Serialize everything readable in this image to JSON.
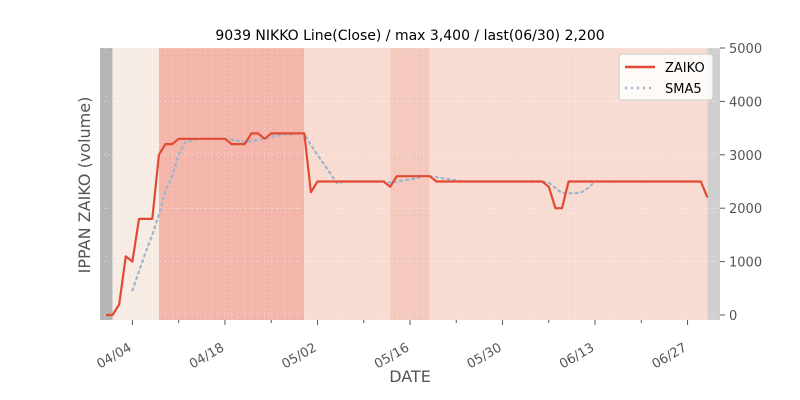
{
  "chart_data": {
    "type": "line",
    "title": "9039 NIKKO Line(Close) / max 3,400 / last(06/30) 2,200",
    "xlabel": "DATE",
    "ylabel": "IPPAN ZAIKO (volume)",
    "ylim": [
      0,
      5000
    ],
    "yticks": [
      0,
      1000,
      2000,
      3000,
      4000,
      5000
    ],
    "ytick_labels": [
      "0",
      "1000",
      "2000",
      "3000",
      "4000",
      "5000"
    ],
    "xlim": [
      "03/31",
      "07/01"
    ],
    "xticks": [
      "04/04",
      "04/18",
      "05/02",
      "05/16",
      "05/30",
      "06/13",
      "06/27"
    ],
    "grid": true,
    "legend_position": "top-right",
    "colors": {
      "zaiko": "#e24a33",
      "sma5": "#9db4cd",
      "band_dark": "#f4b5aa",
      "band_medium": "#f5c8bd",
      "band_light": "#f8dcd2",
      "band_pale": "#f6ece3",
      "edge": "#cfcfcf",
      "edge_dark": "#b5b5b5"
    },
    "series": [
      {
        "name": "ZAIKO",
        "points": [
          [
            "03/31",
            0
          ],
          [
            "04/01",
            0
          ],
          [
            "04/02",
            200
          ],
          [
            "04/03",
            1100
          ],
          [
            "04/04",
            1000
          ],
          [
            "04/05",
            1800
          ],
          [
            "04/06",
            1800
          ],
          [
            "04/07",
            1800
          ],
          [
            "04/08",
            3000
          ],
          [
            "04/09",
            3200
          ],
          [
            "04/10",
            3200
          ],
          [
            "04/11",
            3300
          ],
          [
            "04/12",
            3300
          ],
          [
            "04/13",
            3300
          ],
          [
            "04/14",
            3300
          ],
          [
            "04/15",
            3300
          ],
          [
            "04/16",
            3300
          ],
          [
            "04/17",
            3300
          ],
          [
            "04/18",
            3300
          ],
          [
            "04/19",
            3200
          ],
          [
            "04/20",
            3200
          ],
          [
            "04/21",
            3200
          ],
          [
            "04/22",
            3400
          ],
          [
            "04/23",
            3400
          ],
          [
            "04/24",
            3300
          ],
          [
            "04/25",
            3400
          ],
          [
            "04/26",
            3400
          ],
          [
            "04/27",
            3400
          ],
          [
            "04/28",
            3400
          ],
          [
            "04/29",
            3400
          ],
          [
            "04/30",
            3400
          ],
          [
            "05/01",
            2300
          ],
          [
            "05/02",
            2500
          ],
          [
            "05/03",
            2500
          ],
          [
            "05/04",
            2500
          ],
          [
            "05/05",
            2500
          ],
          [
            "05/06",
            2500
          ],
          [
            "05/07",
            2500
          ],
          [
            "05/08",
            2500
          ],
          [
            "05/09",
            2500
          ],
          [
            "05/10",
            2500
          ],
          [
            "05/11",
            2500
          ],
          [
            "05/12",
            2500
          ],
          [
            "05/13",
            2400
          ],
          [
            "05/14",
            2600
          ],
          [
            "05/15",
            2600
          ],
          [
            "05/16",
            2600
          ],
          [
            "05/17",
            2600
          ],
          [
            "05/18",
            2600
          ],
          [
            "05/19",
            2600
          ],
          [
            "05/20",
            2500
          ],
          [
            "05/21",
            2500
          ],
          [
            "05/22",
            2500
          ],
          [
            "05/23",
            2500
          ],
          [
            "05/24",
            2500
          ],
          [
            "05/25",
            2500
          ],
          [
            "05/26",
            2500
          ],
          [
            "05/27",
            2500
          ],
          [
            "05/28",
            2500
          ],
          [
            "05/29",
            2500
          ],
          [
            "05/30",
            2500
          ],
          [
            "05/31",
            2500
          ],
          [
            "06/01",
            2500
          ],
          [
            "06/02",
            2500
          ],
          [
            "06/03",
            2500
          ],
          [
            "06/04",
            2500
          ],
          [
            "06/05",
            2500
          ],
          [
            "06/06",
            2400
          ],
          [
            "06/07",
            2000
          ],
          [
            "06/08",
            2000
          ],
          [
            "06/09",
            2500
          ],
          [
            "06/10",
            2500
          ],
          [
            "06/11",
            2500
          ],
          [
            "06/12",
            2500
          ],
          [
            "06/13",
            2500
          ],
          [
            "06/14",
            2500
          ],
          [
            "06/15",
            2500
          ],
          [
            "06/16",
            2500
          ],
          [
            "06/17",
            2500
          ],
          [
            "06/18",
            2500
          ],
          [
            "06/19",
            2500
          ],
          [
            "06/20",
            2500
          ],
          [
            "06/21",
            2500
          ],
          [
            "06/22",
            2500
          ],
          [
            "06/23",
            2500
          ],
          [
            "06/24",
            2500
          ],
          [
            "06/25",
            2500
          ],
          [
            "06/26",
            2500
          ],
          [
            "06/27",
            2500
          ],
          [
            "06/28",
            2500
          ],
          [
            "06/29",
            2500
          ],
          [
            "06/30",
            2200
          ]
        ]
      },
      {
        "name": "SMA5",
        "segments": [
          [
            [
              "04/04",
              460
            ],
            [
              "04/05",
              820
            ],
            [
              "04/06",
              1180
            ],
            [
              "04/07",
              1500
            ],
            [
              "04/08",
              1880
            ],
            [
              "04/09",
              2320
            ],
            [
              "04/10",
              2600
            ],
            [
              "04/11",
              3000
            ],
            [
              "04/12",
              3240
            ],
            [
              "04/13",
              3260
            ],
            [
              "04/14",
              3300
            ],
            [
              "04/15",
              3300
            ],
            [
              "04/16",
              3300
            ],
            [
              "04/17",
              3300
            ],
            [
              "04/18",
              3300
            ],
            [
              "04/19",
              3280
            ],
            [
              "04/20",
              3260
            ],
            [
              "04/21",
              3240
            ],
            [
              "04/22",
              3260
            ],
            [
              "04/23",
              3280
            ],
            [
              "04/24",
              3300
            ],
            [
              "04/25",
              3340
            ],
            [
              "04/26",
              3360
            ],
            [
              "04/27",
              3380
            ],
            [
              "04/28",
              3380
            ],
            [
              "04/29",
              3400
            ],
            [
              "04/30",
              3400
            ],
            [
              "05/01",
              3180
            ],
            [
              "05/02",
              3000
            ],
            [
              "05/03",
              2820
            ],
            [
              "05/04",
              2640
            ],
            [
              "05/05",
              2460
            ],
            [
              "05/06",
              2500
            ],
            [
              "05/07",
              2500
            ],
            [
              "05/08",
              2500
            ],
            [
              "05/09",
              2500
            ],
            [
              "05/10",
              2500
            ],
            [
              "05/11",
              2500
            ],
            [
              "05/12",
              2500
            ],
            [
              "05/13",
              2480
            ],
            [
              "05/14",
              2500
            ],
            [
              "05/15",
              2520
            ],
            [
              "05/16",
              2540
            ],
            [
              "05/17",
              2560
            ],
            [
              "05/18",
              2600
            ],
            [
              "05/19",
              2600
            ],
            [
              "05/20",
              2580
            ],
            [
              "05/21",
              2560
            ],
            [
              "05/22",
              2540
            ],
            [
              "05/23",
              2520
            ],
            [
              "05/24",
              2500
            ],
            [
              "05/25",
              2500
            ],
            [
              "05/26",
              2500
            ],
            [
              "05/27",
              2500
            ],
            [
              "05/28",
              2500
            ],
            [
              "05/29",
              2500
            ],
            [
              "05/30",
              2500
            ],
            [
              "05/31",
              2500
            ],
            [
              "06/01",
              2500
            ],
            [
              "06/02",
              2500
            ],
            [
              "06/03",
              2500
            ],
            [
              "06/04",
              2500
            ],
            [
              "06/05",
              2500
            ],
            [
              "06/06",
              2480
            ],
            [
              "06/07",
              2380
            ],
            [
              "06/08",
              2280
            ],
            [
              "06/09",
              2280
            ],
            [
              "06/10",
              2280
            ],
            [
              "06/11",
              2300
            ],
            [
              "06/12",
              2380
            ],
            [
              "06/13",
              2500
            ]
          ]
        ]
      }
    ],
    "background_bands": [
      {
        "from": "03/31",
        "to": "04/01",
        "shade": "edge_dark"
      },
      {
        "from": "04/01",
        "to": "04/08",
        "shade": "band_pale"
      },
      {
        "from": "04/08",
        "to": "04/30",
        "shade": "band_dark"
      },
      {
        "from": "04/30",
        "to": "05/13",
        "shade": "band_light"
      },
      {
        "from": "05/13",
        "to": "05/19",
        "shade": "band_medium"
      },
      {
        "from": "05/19",
        "to": "06/30",
        "shade": "band_light"
      },
      {
        "from": "06/30",
        "to": "07/01",
        "shade": "edge"
      }
    ]
  }
}
